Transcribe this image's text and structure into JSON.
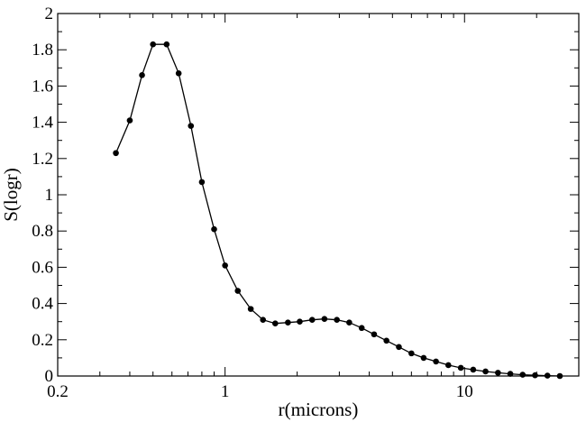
{
  "chart_data": {
    "type": "line",
    "title": "",
    "xlabel": "r(microns)",
    "ylabel": "S(logr)",
    "xscale": "log",
    "xlim": [
      0.2,
      30
    ],
    "ylim": [
      0,
      2
    ],
    "grid": false,
    "legend": "none",
    "x_tick_labels": [
      "0.2",
      "1",
      "10"
    ],
    "x_ticks": [
      0.2,
      1,
      10
    ],
    "y_tick_labels": [
      "0",
      "0.2",
      "0.4",
      "0.6",
      "0.8",
      "1",
      "1.2",
      "1.4",
      "1.6",
      "1.8",
      "2"
    ],
    "y_ticks": [
      0,
      0.2,
      0.4,
      0.6,
      0.8,
      1,
      1.2,
      1.4,
      1.6,
      1.8,
      2
    ],
    "series": [
      {
        "color": "#000000",
        "marker": "circle",
        "x": [
          0.35,
          0.4,
          0.45,
          0.5,
          0.57,
          0.64,
          0.72,
          0.8,
          0.9,
          1.0,
          1.13,
          1.28,
          1.44,
          1.62,
          1.83,
          2.05,
          2.31,
          2.6,
          2.93,
          3.3,
          3.72,
          4.19,
          4.72,
          5.32,
          6.0,
          6.75,
          7.6,
          8.56,
          9.65,
          10.87,
          12.24,
          13.79,
          15.53,
          17.49,
          19.7,
          22.19,
          25.0
        ],
        "y": [
          1.23,
          1.41,
          1.66,
          1.83,
          1.83,
          1.67,
          1.38,
          1.07,
          0.81,
          0.61,
          0.47,
          0.37,
          0.31,
          0.29,
          0.295,
          0.3,
          0.31,
          0.315,
          0.31,
          0.295,
          0.265,
          0.23,
          0.195,
          0.16,
          0.125,
          0.1,
          0.08,
          0.06,
          0.045,
          0.035,
          0.025,
          0.018,
          0.012,
          0.007,
          0.004,
          0.002,
          0.0
        ]
      }
    ]
  }
}
